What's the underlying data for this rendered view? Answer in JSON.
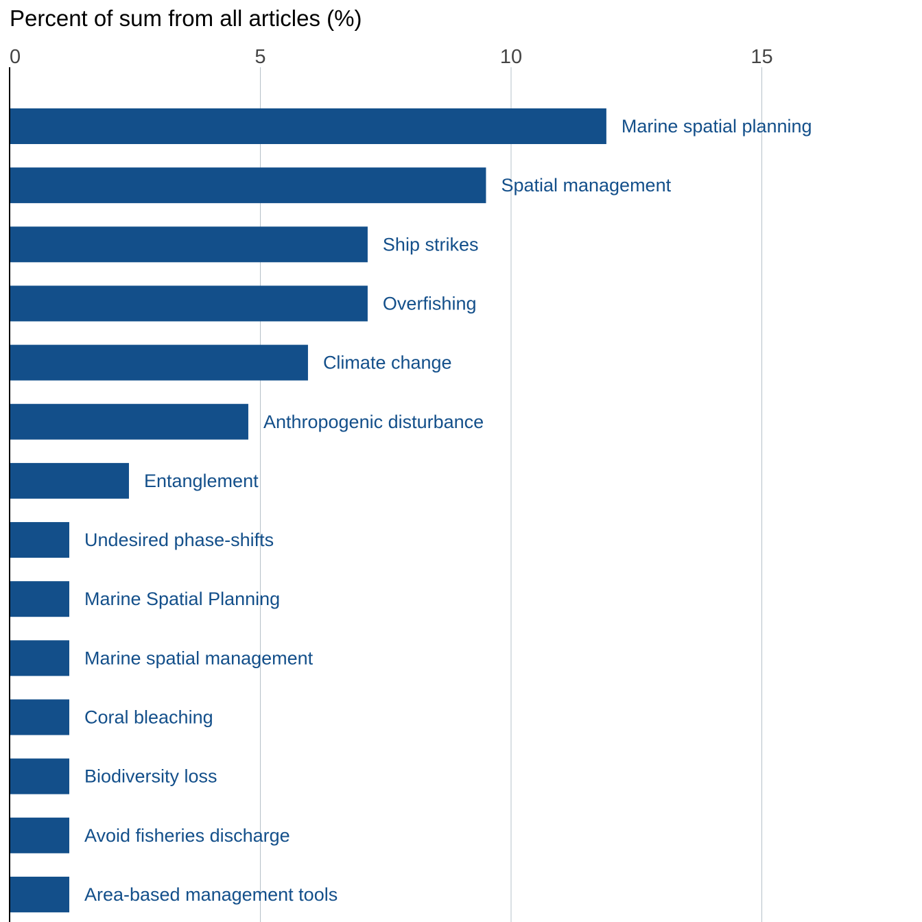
{
  "chart_data": {
    "type": "bar",
    "orientation": "horizontal",
    "title": "Percent of sum from all articles (%)",
    "xlabel": "",
    "ylabel": "",
    "xlim": [
      0,
      17.5
    ],
    "x_ticks": [
      0,
      5,
      10,
      15
    ],
    "tick_labels": [
      "0",
      "5",
      "10",
      "15"
    ],
    "grid": "vertical",
    "tick_position": "top",
    "categories": [
      "Marine spatial planning",
      "Spatial management",
      "Ship strikes",
      "Overfishing",
      "Climate change",
      "Anthropogenic disturbance",
      "Entanglement",
      "Undesired phase-shifts",
      "Marine Spatial Planning",
      "Marine spatial management",
      "Coral bleaching",
      "Biodiversity loss",
      "Avoid fisheries discharge",
      "Area-based management tools"
    ],
    "values": [
      11.9,
      9.5,
      7.14,
      7.14,
      5.95,
      4.76,
      2.38,
      1.19,
      1.19,
      1.19,
      1.19,
      1.19,
      1.19,
      1.19
    ],
    "colors": {
      "bar": "#134f8a",
      "label": "#134f8a",
      "grid": "#b4c0c8",
      "axis": "#000000",
      "tick": "#444444"
    }
  }
}
